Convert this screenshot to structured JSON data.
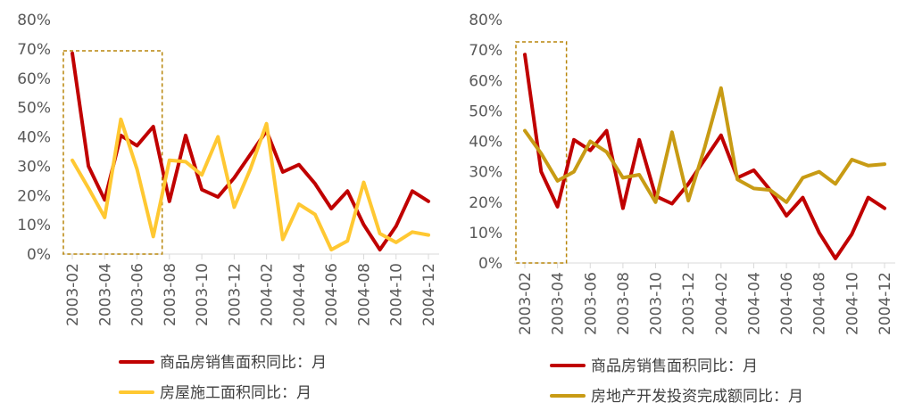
{
  "chart_data": [
    {
      "type": "line",
      "title": "",
      "xlabel": "",
      "ylabel": "",
      "ylim": [
        0,
        80
      ],
      "yticks": [
        "0%",
        "10%",
        "20%",
        "30%",
        "40%",
        "50%",
        "60%",
        "70%",
        "80%"
      ],
      "categories": [
        "2003-02",
        "2003-03",
        "2003-04",
        "2003-05",
        "2003-06",
        "2003-07",
        "2003-08",
        "2003-09",
        "2003-10",
        "2003-11",
        "2003-12",
        "2004-01",
        "2004-02",
        "2004-03",
        "2004-04",
        "2004-05",
        "2004-06",
        "2004-07",
        "2004-08",
        "2004-09",
        "2004-10",
        "2004-11",
        "2004-12"
      ],
      "xtick_labels": [
        "2003-02",
        "2003-04",
        "2003-06",
        "2003-08",
        "2003-10",
        "2003-12",
        "2004-02",
        "2004-04",
        "2004-06",
        "2004-08",
        "2004-10",
        "2004-12"
      ],
      "grid": false,
      "legend_position": "bottom",
      "highlight_box": {
        "from": "2003-02",
        "to": "2003-07",
        "color": "#B8860B"
      },
      "series": [
        {
          "name": "商品房销售面积同比：月",
          "color": "#C00000",
          "values": [
            68.5,
            30,
            18.5,
            40.5,
            37,
            43.5,
            18,
            40.5,
            22,
            19.5,
            26,
            34,
            42,
            28,
            30.5,
            24,
            15.5,
            21.5,
            10,
            1.5,
            9.5,
            21.5,
            18
          ]
        },
        {
          "name": "房屋施工面积同比：月",
          "color": "#FFC832",
          "values": [
            32,
            22.5,
            12.5,
            46,
            29,
            6,
            32,
            31.5,
            27,
            40,
            16,
            29,
            44.5,
            5,
            17,
            13.5,
            1.5,
            4.5,
            24.5,
            7,
            4,
            7.5,
            6.5
          ]
        }
      ]
    },
    {
      "type": "line",
      "title": "",
      "xlabel": "",
      "ylabel": "",
      "ylim": [
        0,
        80
      ],
      "yticks": [
        "0%",
        "10%",
        "20%",
        "30%",
        "40%",
        "50%",
        "60%",
        "70%",
        "80%"
      ],
      "categories": [
        "2003-02",
        "2003-03",
        "2003-04",
        "2003-05",
        "2003-06",
        "2003-07",
        "2003-08",
        "2003-09",
        "2003-10",
        "2003-11",
        "2003-12",
        "2004-01",
        "2004-02",
        "2004-03",
        "2004-04",
        "2004-05",
        "2004-06",
        "2004-07",
        "2004-08",
        "2004-09",
        "2004-10",
        "2004-11",
        "2004-12"
      ],
      "xtick_labels": [
        "2003-02",
        "2003-04",
        "2003-06",
        "2003-08",
        "2003-10",
        "2003-12",
        "2004-02",
        "2004-04",
        "2004-06",
        "2004-08",
        "2004-10",
        "2004-12"
      ],
      "grid": false,
      "legend_position": "bottom",
      "highlight_box": {
        "from": "2003-02",
        "to": "2003-04",
        "color": "#B8860B"
      },
      "series": [
        {
          "name": "商品房销售面积同比：月",
          "color": "#C00000",
          "values": [
            68.5,
            30,
            18.5,
            40.5,
            37,
            43.5,
            18,
            40.5,
            22,
            19.5,
            26,
            34,
            42,
            28,
            30.5,
            24,
            15.5,
            21.5,
            10,
            1.5,
            9.5,
            21.5,
            18
          ]
        },
        {
          "name": "房地产开发投资完成额同比：月",
          "color": "#C89B14",
          "values": [
            43.5,
            36,
            27,
            30,
            40,
            36.5,
            28,
            29,
            20,
            43,
            20.5,
            38,
            57.5,
            27.5,
            24.5,
            24,
            20,
            28,
            30,
            26,
            34,
            32,
            32.5
          ]
        }
      ]
    }
  ]
}
